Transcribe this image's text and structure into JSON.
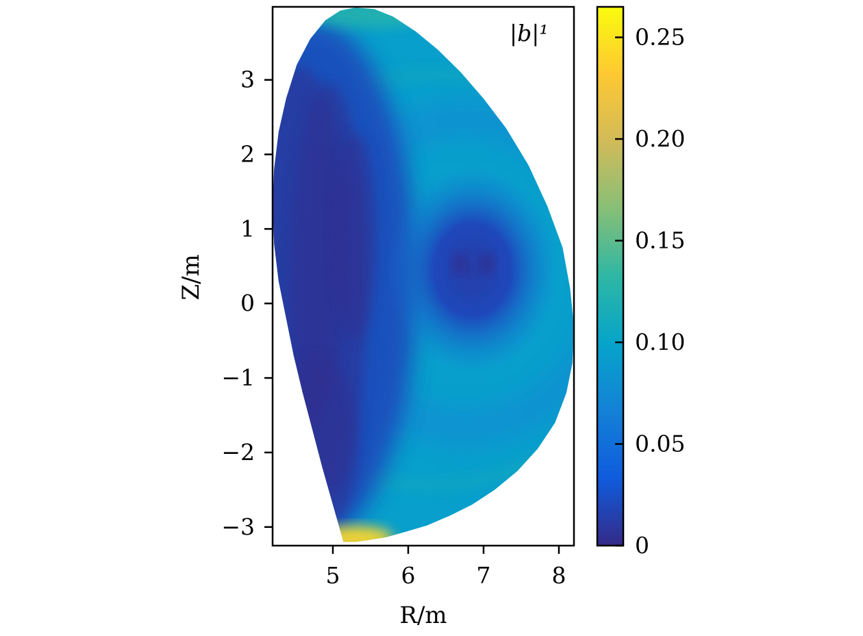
{
  "chart_data": {
    "type": "heatmap",
    "title": "",
    "annotation": "|b|¹",
    "xlabel": "R/m",
    "ylabel": "Z/m",
    "xlim": [
      4.2,
      8.2
    ],
    "ylim": [
      -3.25,
      3.98
    ],
    "xticks": [
      5,
      6,
      7,
      8
    ],
    "yticks": [
      -3,
      -2,
      -1,
      0,
      1,
      2,
      3
    ],
    "xtick_labels": [
      "5",
      "6",
      "7",
      "8"
    ],
    "ytick_labels": [
      "−3",
      "−2",
      "−1",
      "0",
      "1",
      "2",
      "3"
    ],
    "colorbar": {
      "range": [
        0,
        0.265
      ],
      "ticks": [
        0,
        0.05,
        0.1,
        0.15,
        0.2,
        0.25
      ],
      "tick_labels": [
        "0",
        "0.05",
        "0.10",
        "0.15",
        "0.20",
        "0.25"
      ],
      "colormap": [
        "#352a87",
        "#0f5cdd",
        "#1481d6",
        "#06a4ca",
        "#2eb7a4",
        "#87bf77",
        "#d1bb59",
        "#fec832",
        "#f9fb0e"
      ]
    },
    "plasma_boundary": {
      "R": [
        5.14,
        5.0,
        4.86,
        4.73,
        4.6,
        4.48,
        4.38,
        4.28,
        4.22,
        4.2,
        4.22,
        4.28,
        4.38,
        4.52,
        4.7,
        4.9,
        5.1,
        5.3,
        5.55,
        5.8,
        6.1,
        6.4,
        6.7,
        7.0,
        7.3,
        7.6,
        7.85,
        8.05,
        8.15,
        8.2,
        8.18,
        8.1,
        7.95,
        7.72,
        7.45,
        7.15,
        6.85,
        6.55,
        6.25,
        5.95,
        5.7,
        5.45,
        5.3
      ],
      "Z": [
        -3.2,
        -2.7,
        -2.2,
        -1.7,
        -1.2,
        -0.7,
        -0.2,
        0.3,
        0.8,
        1.3,
        1.8,
        2.3,
        2.75,
        3.2,
        3.55,
        3.8,
        3.93,
        3.97,
        3.95,
        3.85,
        3.65,
        3.4,
        3.1,
        2.75,
        2.35,
        1.85,
        1.3,
        0.75,
        0.2,
        -0.3,
        -0.8,
        -1.2,
        -1.6,
        -1.95,
        -2.25,
        -2.5,
        -2.7,
        -2.85,
        -2.98,
        -3.07,
        -3.14,
        -3.18,
        -3.2
      ]
    },
    "magnetic_axis": {
      "R": 6.85,
      "Z": 0.5
    },
    "minima": [
      {
        "R": 6.68,
        "Z": 0.53
      },
      {
        "R": 7.05,
        "Z": 0.53
      }
    ],
    "field_levels": {
      "background": 0.095,
      "core": 0.012,
      "edge_bands": 0.02,
      "outer_ring": 0.12,
      "hot_spot_bottom": 0.24,
      "top_rim": 0.13
    }
  }
}
